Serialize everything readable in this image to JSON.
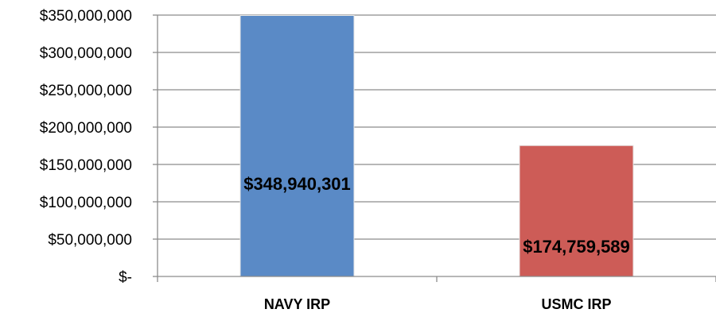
{
  "chart_data": {
    "type": "bar",
    "categories": [
      "NAVY IRP",
      "USMC IRP"
    ],
    "values": [
      348940301,
      174759589
    ],
    "data_labels": [
      "$348,940,301",
      "$174,759,589"
    ],
    "bar_colors": [
      "#5a8ac6",
      "#cd5c57"
    ],
    "ylim": [
      0,
      350000000
    ],
    "y_ticks": [
      0,
      50000000,
      100000000,
      150000000,
      200000000,
      250000000,
      300000000,
      350000000
    ],
    "y_tick_labels": [
      "$-",
      "$50,000,000",
      "$100,000,000",
      "$150,000,000",
      "$200,000,000",
      "$250,000,000",
      "$300,000,000",
      "$350,000,000"
    ],
    "grid": true,
    "title": "",
    "xlabel": "",
    "ylabel": ""
  }
}
